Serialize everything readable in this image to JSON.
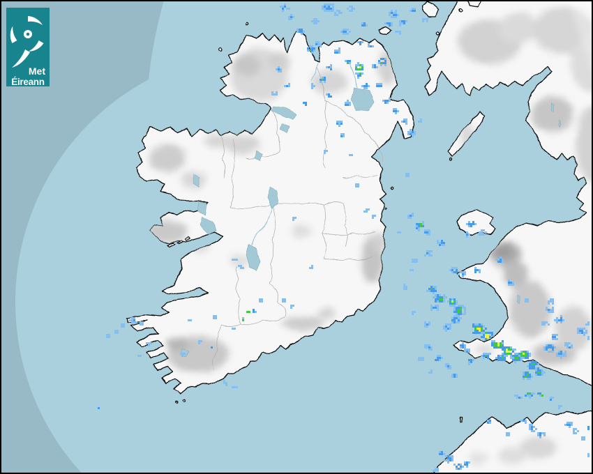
{
  "logo": {
    "line1": "Met",
    "line2": "Éireann",
    "background": "#17848E",
    "text_color": "#FFFFFF"
  },
  "map": {
    "sea_color": "#97BAC6",
    "radar_coverage_sea_color": "#AAD0DD",
    "land_color": "#F7F7F7",
    "coastline_color": "#0B0B0B",
    "county_border_color": "#B2B2B2",
    "lake_color": "#A3C8D6",
    "lake_edge_color": "#86AEBE",
    "frame_border_color": "#000000",
    "rain_palette": {
      "1": "#85BFF2",
      "2": "#459AE9",
      "3": "#3FCB40",
      "4": "#F5EE3B"
    },
    "rain_cells": [
      [
        405,
        8,
        5,
        2
      ],
      [
        414,
        22,
        4,
        2
      ],
      [
        427,
        41,
        5,
        2
      ],
      [
        449,
        27,
        4,
        2
      ],
      [
        468,
        7,
        8,
        2
      ],
      [
        480,
        16,
        5,
        1
      ],
      [
        492,
        43,
        5,
        2
      ],
      [
        500,
        9,
        4,
        1
      ],
      [
        519,
        31,
        4,
        2
      ],
      [
        511,
        93,
        6,
        4
      ],
      [
        512,
        104,
        4,
        3
      ],
      [
        496,
        86,
        3,
        3
      ],
      [
        514,
        58,
        3,
        3
      ],
      [
        528,
        63,
        3,
        2
      ],
      [
        480,
        70,
        4,
        2
      ],
      [
        545,
        85,
        5,
        3
      ],
      [
        534,
        92,
        4,
        2
      ],
      [
        443,
        68,
        5,
        3
      ],
      [
        452,
        60,
        4,
        2
      ],
      [
        470,
        94,
        4,
        2
      ],
      [
        459,
        111,
        4,
        3
      ],
      [
        444,
        120,
        3,
        1
      ],
      [
        469,
        134,
        4,
        2
      ],
      [
        483,
        173,
        4,
        2
      ],
      [
        495,
        145,
        4,
        2
      ],
      [
        521,
        119,
        4,
        2
      ],
      [
        540,
        119,
        4,
        2
      ],
      [
        551,
        141,
        4,
        2
      ],
      [
        563,
        155,
        4,
        2
      ],
      [
        577,
        171,
        4,
        2
      ],
      [
        586,
        187,
        5,
        2
      ],
      [
        599,
        170,
        3,
        1
      ],
      [
        580,
        248,
        3,
        1
      ],
      [
        560,
        17,
        6,
        2
      ],
      [
        574,
        29,
        5,
        2
      ],
      [
        589,
        11,
        4,
        2
      ],
      [
        554,
        31,
        4,
        2
      ],
      [
        568,
        43,
        4,
        1
      ],
      [
        607,
        24,
        3,
        1
      ],
      [
        395,
        97,
        4,
        2
      ],
      [
        408,
        119,
        3,
        2
      ],
      [
        434,
        146,
        3,
        2
      ],
      [
        390,
        130,
        3,
        1
      ],
      [
        487,
        191,
        3,
        2
      ],
      [
        463,
        213,
        2,
        1
      ],
      [
        500,
        218,
        2,
        1
      ],
      [
        510,
        262,
        2,
        1
      ],
      [
        523,
        298,
        3,
        1
      ],
      [
        531,
        307,
        2,
        1
      ],
      [
        418,
        311,
        2,
        1
      ],
      [
        443,
        380,
        2,
        1
      ],
      [
        334,
        368,
        3,
        1
      ],
      [
        341,
        380,
        3,
        1
      ],
      [
        352,
        443,
        2,
        3
      ],
      [
        346,
        455,
        2,
        3
      ],
      [
        361,
        443,
        2,
        2
      ],
      [
        370,
        427,
        3,
        1
      ],
      [
        404,
        428,
        3,
        1
      ],
      [
        414,
        436,
        2,
        1
      ],
      [
        188,
        456,
        4,
        2
      ],
      [
        199,
        460,
        3,
        1
      ],
      [
        171,
        463,
        3,
        1
      ],
      [
        164,
        473,
        3,
        1
      ],
      [
        152,
        478,
        2,
        1
      ],
      [
        138,
        582,
        2,
        2
      ],
      [
        210,
        490,
        2,
        1
      ],
      [
        197,
        507,
        2,
        1
      ],
      [
        268,
        457,
        2,
        1
      ],
      [
        282,
        487,
        2,
        1
      ],
      [
        299,
        495,
        2,
        3
      ],
      [
        305,
        452,
        2,
        1
      ],
      [
        330,
        468,
        2,
        1
      ],
      [
        320,
        545,
        3,
        1
      ],
      [
        333,
        552,
        2,
        1
      ],
      [
        260,
        505,
        2,
        1
      ],
      [
        570,
        330,
        3,
        1
      ],
      [
        585,
        307,
        4,
        2
      ],
      [
        599,
        319,
        5,
        3
      ],
      [
        610,
        330,
        4,
        2
      ],
      [
        595,
        325,
        3,
        2
      ],
      [
        610,
        360,
        5,
        2
      ],
      [
        590,
        370,
        3,
        1
      ],
      [
        585,
        383,
        3,
        1
      ],
      [
        578,
        408,
        3,
        1
      ],
      [
        590,
        445,
        3,
        1
      ],
      [
        610,
        462,
        4,
        2
      ],
      [
        615,
        412,
        6,
        3
      ],
      [
        627,
        425,
        7,
        3
      ],
      [
        620,
        438,
        5,
        2
      ],
      [
        645,
        430,
        6,
        3
      ],
      [
        647,
        428,
        3,
        4
      ],
      [
        655,
        442,
        8,
        3
      ],
      [
        650,
        455,
        6,
        3
      ],
      [
        638,
        466,
        5,
        2
      ],
      [
        672,
        318,
        5,
        3
      ],
      [
        688,
        330,
        4,
        2
      ],
      [
        666,
        333,
        3,
        2
      ],
      [
        648,
        385,
        5,
        3
      ],
      [
        660,
        390,
        4,
        2
      ],
      [
        680,
        385,
        4,
        2
      ],
      [
        630,
        345,
        5,
        2
      ],
      [
        712,
        370,
        4,
        2
      ],
      [
        728,
        403,
        4,
        2
      ],
      [
        752,
        428,
        3,
        1
      ],
      [
        683,
        468,
        9,
        4
      ],
      [
        695,
        478,
        7,
        4
      ],
      [
        710,
        490,
        8,
        4
      ],
      [
        725,
        500,
        8,
        4
      ],
      [
        737,
        510,
        7,
        3
      ],
      [
        715,
        510,
        6,
        3
      ],
      [
        748,
        505,
        7,
        4
      ],
      [
        760,
        520,
        7,
        3
      ],
      [
        752,
        535,
        6,
        3
      ],
      [
        770,
        530,
        6,
        3
      ],
      [
        785,
        495,
        7,
        3
      ],
      [
        800,
        505,
        6,
        2
      ],
      [
        812,
        492,
        5,
        2
      ],
      [
        790,
        480,
        5,
        2
      ],
      [
        785,
        440,
        5,
        2
      ],
      [
        798,
        455,
        5,
        2
      ],
      [
        778,
        460,
        4,
        1
      ],
      [
        786,
        428,
        4,
        1
      ],
      [
        830,
        472,
        6,
        2
      ],
      [
        845,
        482,
        5,
        2
      ],
      [
        842,
        460,
        4,
        1
      ],
      [
        610,
        495,
        4,
        2
      ],
      [
        625,
        510,
        4,
        2
      ],
      [
        623,
        513,
        3,
        3
      ],
      [
        638,
        522,
        4,
        2
      ],
      [
        615,
        528,
        3,
        1
      ],
      [
        600,
        512,
        3,
        1
      ],
      [
        648,
        535,
        4,
        2
      ],
      [
        668,
        500,
        4,
        2
      ],
      [
        672,
        515,
        4,
        2
      ],
      [
        693,
        507,
        5,
        3
      ],
      [
        660,
        493,
        4,
        2
      ],
      [
        755,
        562,
        5,
        3
      ],
      [
        772,
        562,
        4,
        3
      ],
      [
        740,
        567,
        4,
        2
      ],
      [
        785,
        568,
        3,
        2
      ],
      [
        800,
        580,
        2,
        1
      ],
      [
        760,
        610,
        5,
        2
      ],
      [
        772,
        620,
        4,
        2
      ],
      [
        748,
        600,
        3,
        2
      ],
      [
        698,
        601,
        2,
        3
      ],
      [
        725,
        620,
        3,
        1
      ],
      [
        640,
        655,
        6,
        2
      ],
      [
        654,
        666,
        5,
        3
      ],
      [
        630,
        647,
        4,
        2
      ],
      [
        665,
        662,
        4,
        2
      ],
      [
        622,
        672,
        4,
        1
      ],
      [
        648,
        678,
        4,
        2
      ],
      [
        812,
        606,
        4,
        2
      ],
      [
        822,
        615,
        4,
        2
      ],
      [
        840,
        612,
        3,
        3
      ],
      [
        833,
        625,
        3,
        1
      ],
      [
        843,
        650,
        3,
        1
      ],
      [
        848,
        668,
        4,
        2
      ]
    ]
  }
}
